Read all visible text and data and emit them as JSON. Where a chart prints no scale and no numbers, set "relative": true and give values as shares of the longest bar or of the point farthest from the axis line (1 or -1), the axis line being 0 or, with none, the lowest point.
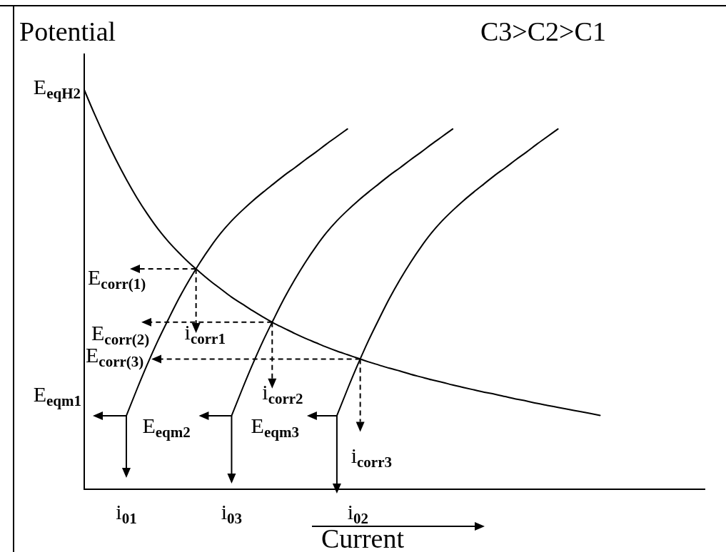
{
  "chart_data": {
    "type": "line",
    "relative": true,
    "ylabel": "Potential",
    "xlabel": "Current",
    "categories": [
      null,
      null,
      null,
      null,
      "i$_{01}$",
      null,
      null,
      null,
      null,
      null,
      null,
      null,
      null,
      null,
      "i$_{03}$",
      null,
      null,
      null,
      null,
      null,
      null,
      null,
      null,
      null,
      null,
      null,
      "i$_{02}$",
      null,
      null,
      null,
      null,
      null,
      null,
      null,
      null,
      null,
      null,
      null,
      null,
      null,
      null,
      null,
      null,
      null,
      null,
      null,
      null,
      null,
      null,
      null,
      null,
      null,
      null,
      null,
      null,
      null,
      null,
      null,
      null,
      null
    ],
    "series": [
      {
        "color": "#000000",
        "values": [
          1.0,
          0.938,
          0.88,
          0.826,
          0.776,
          0.73,
          0.689,
          0.652,
          0.62,
          0.592,
          0.566,
          0.543,
          0.521,
          0.501,
          0.481,
          0.464,
          0.447,
          0.431,
          0.416,
          0.403,
          0.39,
          0.378,
          0.367,
          0.356,
          0.346,
          0.337,
          0.328,
          0.319,
          0.311,
          0.303,
          0.296,
          0.288,
          0.281,
          0.274,
          0.268,
          0.261,
          0.255,
          0.249,
          0.243,
          0.238,
          0.232,
          0.226,
          0.221,
          0.215,
          0.21,
          0.205,
          0.2,
          0.195,
          0.19,
          0.185,
          null,
          null,
          null,
          null,
          null,
          null,
          null,
          null,
          null,
          null
        ]
      },
      {
        "color": "#000000",
        "values": [
          null,
          null,
          null,
          null,
          0.184,
          0.25,
          0.313,
          0.372,
          0.426,
          0.478,
          0.525,
          0.568,
          0.607,
          0.642,
          0.672,
          0.698,
          0.722,
          0.744,
          0.765,
          0.786,
          0.805,
          0.825,
          0.844,
          0.864,
          0.883,
          0.902,
          null,
          null,
          null,
          null,
          null,
          null,
          null,
          null,
          null,
          null,
          null,
          null,
          null,
          null,
          null,
          null,
          null,
          null,
          null,
          null,
          null,
          null,
          null,
          null,
          null,
          null,
          null,
          null,
          null,
          null,
          null,
          null,
          null,
          null
        ]
      },
      {
        "color": "#000000",
        "values": [
          null,
          null,
          null,
          null,
          null,
          null,
          null,
          null,
          null,
          null,
          null,
          null,
          null,
          null,
          0.184,
          0.25,
          0.313,
          0.372,
          0.426,
          0.478,
          0.525,
          0.568,
          0.607,
          0.642,
          0.672,
          0.698,
          0.722,
          0.744,
          0.765,
          0.786,
          0.805,
          0.825,
          0.844,
          0.864,
          0.883,
          0.902,
          null,
          null,
          null,
          null,
          null,
          null,
          null,
          null,
          null,
          null,
          null,
          null,
          null,
          null,
          null,
          null,
          null,
          null,
          null,
          null,
          null,
          null,
          null,
          null
        ]
      },
      {
        "color": "#000000",
        "values": [
          null,
          null,
          null,
          null,
          null,
          null,
          null,
          null,
          null,
          null,
          null,
          null,
          null,
          null,
          null,
          null,
          null,
          null,
          null,
          null,
          null,
          null,
          null,
          null,
          0.184,
          0.25,
          0.313,
          0.372,
          0.426,
          0.478,
          0.525,
          0.568,
          0.607,
          0.642,
          0.672,
          0.698,
          0.722,
          0.744,
          0.765,
          0.786,
          0.805,
          0.825,
          0.844,
          0.864,
          0.883,
          0.902,
          null,
          null,
          null,
          null,
          null,
          null,
          null,
          null,
          null,
          null,
          null,
          null,
          null,
          null
        ]
      }
    ],
    "annotations": [
      "E$_{eqH2}$",
      "E$_{corr(1)}$",
      "E$_{corr(2)}$",
      "E$_{corr(3)}$",
      "i$_{corr1}$",
      "i$_{corr2}$",
      "i$_{corr3}$",
      "E$_{eqm1}$",
      "E$_{eqm2}$",
      "E$_{eqm3}$",
      "C3>C2>C1"
    ]
  }
}
